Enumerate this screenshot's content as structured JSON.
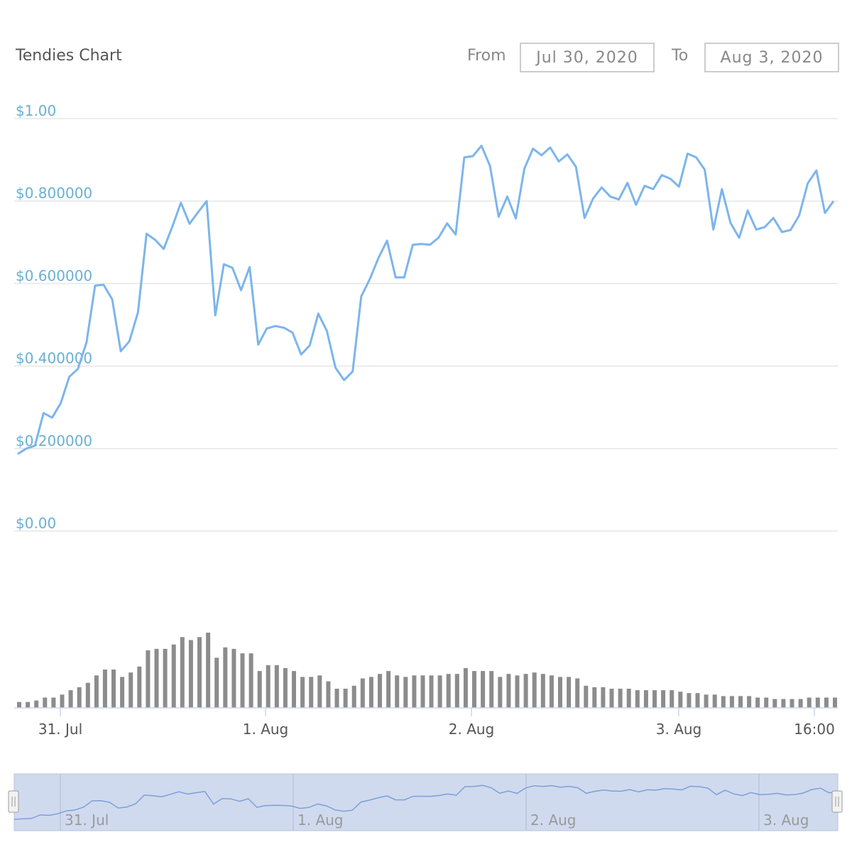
{
  "header": {
    "title": "Tendies Chart",
    "from_label": "From",
    "from_value": "Jul 30, 2020",
    "to_label": "To",
    "to_value": "Aug 3, 2020"
  },
  "colors": {
    "line": "#7cb5ec",
    "axis_text": "#6ab0d3",
    "volume": "#8c8c8c",
    "navigator_fill": "#d0daee",
    "navigator_line": "#7ca0d8"
  },
  "chart_data": {
    "type": "line",
    "ylim": [
      0,
      1.0
    ],
    "y_tick_labels": [
      "$0.00",
      "$0.200000",
      "$0.400000",
      "$0.600000",
      "$0.800000",
      "$1.00"
    ],
    "x_tick_labels": [
      "31. Jul",
      "1. Aug",
      "2. Aug",
      "3. Aug",
      "16:00"
    ],
    "price": [
      0.187,
      0.2,
      0.207,
      0.286,
      0.275,
      0.31,
      0.374,
      0.393,
      0.457,
      0.595,
      0.597,
      0.562,
      0.436,
      0.46,
      0.53,
      0.721,
      0.706,
      0.684,
      0.738,
      0.796,
      0.745,
      0.773,
      0.8,
      0.523,
      0.647,
      0.638,
      0.584,
      0.64,
      0.452,
      0.491,
      0.497,
      0.493,
      0.481,
      0.428,
      0.45,
      0.527,
      0.485,
      0.396,
      0.366,
      0.387,
      0.569,
      0.611,
      0.662,
      0.704,
      0.615,
      0.615,
      0.694,
      0.696,
      0.694,
      0.711,
      0.746,
      0.719,
      0.906,
      0.909,
      0.934,
      0.885,
      0.762,
      0.811,
      0.758,
      0.879,
      0.927,
      0.911,
      0.93,
      0.896,
      0.913,
      0.883,
      0.759,
      0.806,
      0.833,
      0.811,
      0.804,
      0.844,
      0.791,
      0.837,
      0.829,
      0.863,
      0.854,
      0.835,
      0.915,
      0.906,
      0.876,
      0.731,
      0.829,
      0.747,
      0.711,
      0.777,
      0.731,
      0.737,
      0.759,
      0.725,
      0.73,
      0.765,
      0.843,
      0.874,
      0.771,
      0.8
    ],
    "volume": [
      8,
      8,
      10,
      14,
      14,
      18,
      24,
      28,
      34,
      44,
      52,
      52,
      42,
      48,
      56,
      78,
      80,
      80,
      86,
      96,
      92,
      96,
      102,
      68,
      82,
      80,
      74,
      74,
      50,
      58,
      58,
      54,
      50,
      42,
      42,
      44,
      36,
      26,
      26,
      30,
      40,
      42,
      46,
      50,
      44,
      42,
      44,
      44,
      44,
      44,
      46,
      46,
      54,
      50,
      50,
      50,
      42,
      46,
      44,
      46,
      48,
      46,
      44,
      42,
      42,
      40,
      30,
      28,
      28,
      26,
      26,
      26,
      24,
      24,
      24,
      24,
      24,
      22,
      20,
      20,
      18,
      18,
      16,
      16,
      16,
      16,
      14,
      14,
      12,
      12,
      12,
      12,
      14,
      14,
      14,
      14
    ]
  },
  "navigator": {
    "tick_labels": [
      "31. Jul",
      "1. Aug",
      "2. Aug",
      "3. Aug"
    ]
  }
}
